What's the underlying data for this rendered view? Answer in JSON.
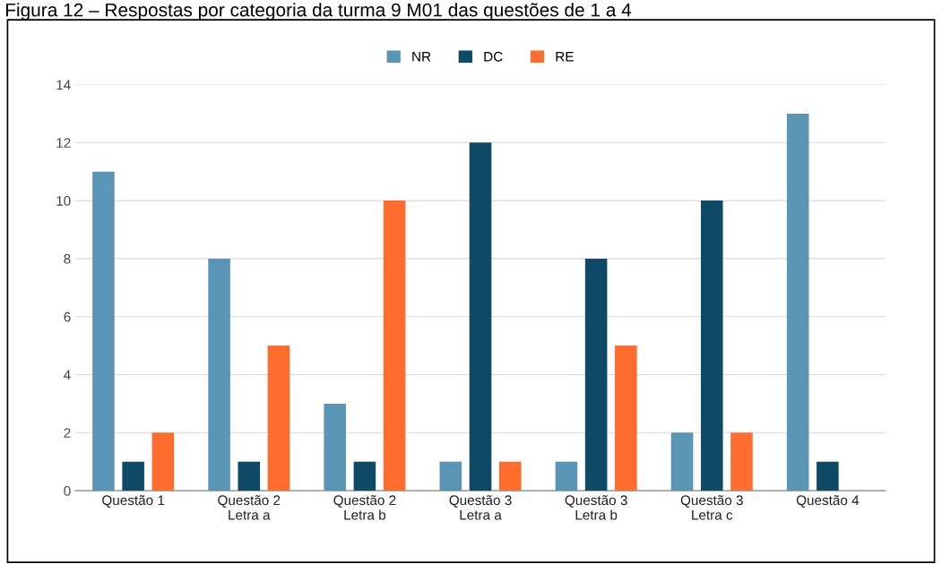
{
  "chart_data": {
    "type": "bar",
    "title": "Figura 12 – Respostas por categoria da turma 9 M01 das questões de 1 a 4",
    "categories": [
      "Questão 1",
      "Questão 2\nLetra a",
      "Questão 2\nLetra b",
      "Questão 3\nLetra a",
      "Questão 3\nLetra b",
      "Questão 3\nLetra c",
      "Questão 4"
    ],
    "series": [
      {
        "name": "NR",
        "color": "#5b95b5",
        "values": [
          11,
          8,
          3,
          1,
          1,
          2,
          13
        ]
      },
      {
        "name": "DC",
        "color": "#0e4a66",
        "values": [
          1,
          1,
          1,
          12,
          8,
          10,
          1
        ]
      },
      {
        "name": "RE",
        "color": "#ff6d2e",
        "values": [
          2,
          5,
          10,
          1,
          5,
          2,
          0
        ]
      }
    ],
    "ylim": [
      0,
      14
    ],
    "yticks": [
      0,
      2,
      4,
      6,
      8,
      10,
      12,
      14
    ],
    "grid": "y",
    "legend": "top"
  }
}
